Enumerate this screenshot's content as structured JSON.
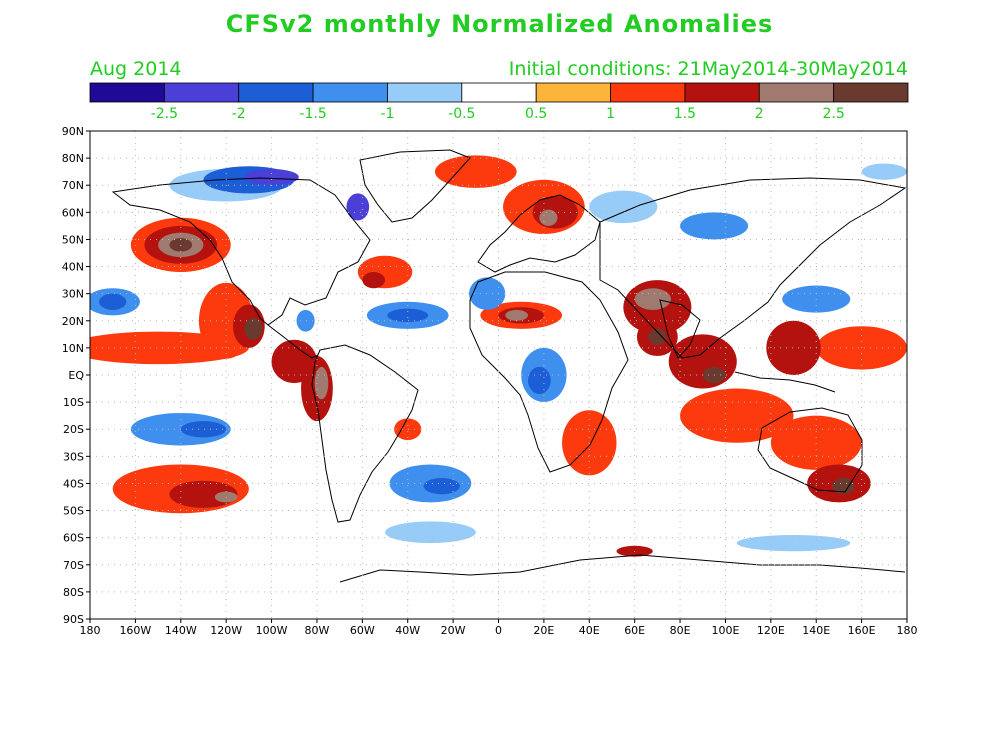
{
  "title": "CFSv2 monthly Normalized Anomalies",
  "month": "Aug 2014",
  "init": "Initial conditions: 21May2014-30May2014",
  "colorbar": {
    "colors": [
      "#1f0a96",
      "#4a3fd6",
      "#1c5ed6",
      "#3f8fee",
      "#98ccf8",
      "#ffffff",
      "#fdb43a",
      "#fc3a0e",
      "#b4120e",
      "#a07a6e",
      "#6a3a2e"
    ],
    "ticks": [
      "-2.5",
      "-2",
      "-1.5",
      "-1",
      "-0.5",
      "0.5",
      "1",
      "1.5",
      "2",
      "2.5"
    ]
  },
  "axes": {
    "lat_labels": [
      "90N",
      "80N",
      "70N",
      "60N",
      "50N",
      "40N",
      "30N",
      "20N",
      "10N",
      "EQ",
      "10S",
      "20S",
      "30S",
      "40S",
      "50S",
      "60S",
      "70S",
      "80S",
      "90S"
    ],
    "lon_labels": [
      "180",
      "160W",
      "140W",
      "120W",
      "100W",
      "80W",
      "60W",
      "40W",
      "20W",
      "0",
      "20E",
      "40E",
      "60E",
      "80E",
      "100E",
      "120E",
      "140E",
      "160E",
      "180"
    ]
  },
  "map_data": {
    "type": "filled-contour-map",
    "grid": true,
    "lon_range": [
      -180,
      180
    ],
    "lat_range": [
      -90,
      90
    ],
    "anomaly_regions": [
      {
        "lon": -140,
        "lat": 48,
        "rx": 22,
        "ry": 10,
        "level": 1
      },
      {
        "lon": -140,
        "lat": 48,
        "rx": 16,
        "ry": 7,
        "level": 1.5
      },
      {
        "lon": -140,
        "lat": 48,
        "rx": 10,
        "ry": 4.5,
        "level": 2
      },
      {
        "lon": -140,
        "lat": 48,
        "rx": 5,
        "ry": 2.5,
        "level": 2.5
      },
      {
        "lon": -170,
        "lat": 27,
        "rx": 12,
        "ry": 5,
        "level": -1
      },
      {
        "lon": -170,
        "lat": 27,
        "rx": 6,
        "ry": 3,
        "level": -1.5
      },
      {
        "lon": -150,
        "lat": 10,
        "rx": 40,
        "ry": 6,
        "level": 1
      },
      {
        "lon": -120,
        "lat": 20,
        "rx": 12,
        "ry": 14,
        "level": 1
      },
      {
        "lon": -110,
        "lat": 18,
        "rx": 7,
        "ry": 8,
        "level": 1.5
      },
      {
        "lon": -108,
        "lat": 17,
        "rx": 4,
        "ry": 4,
        "level": 2.5
      },
      {
        "lon": -90,
        "lat": 5,
        "rx": 10,
        "ry": 8,
        "level": 1.5
      },
      {
        "lon": -80,
        "lat": -5,
        "rx": 7,
        "ry": 12,
        "level": 1.5
      },
      {
        "lon": -78,
        "lat": -3,
        "rx": 3,
        "ry": 6,
        "level": 2
      },
      {
        "lon": -120,
        "lat": 70,
        "rx": 25,
        "ry": 6,
        "level": -0.5
      },
      {
        "lon": -110,
        "lat": 72,
        "rx": 20,
        "ry": 5,
        "level": -1.5
      },
      {
        "lon": -100,
        "lat": 73,
        "rx": 12,
        "ry": 3,
        "level": -2
      },
      {
        "lon": -62,
        "lat": 62,
        "rx": 5,
        "ry": 5,
        "level": -2
      },
      {
        "lon": -40,
        "lat": 22,
        "rx": 18,
        "ry": 5,
        "level": -1
      },
      {
        "lon": -40,
        "lat": 22,
        "rx": 9,
        "ry": 2.5,
        "level": -1.5
      },
      {
        "lon": -50,
        "lat": 38,
        "rx": 12,
        "ry": 6,
        "level": 1
      },
      {
        "lon": -55,
        "lat": 35,
        "rx": 5,
        "ry": 3,
        "level": 1.5
      },
      {
        "lon": -85,
        "lat": 20,
        "rx": 4,
        "ry": 4,
        "level": -1
      },
      {
        "lon": -140,
        "lat": -20,
        "rx": 22,
        "ry": 6,
        "level": -1
      },
      {
        "lon": -130,
        "lat": -20,
        "rx": 10,
        "ry": 3,
        "level": -1.5
      },
      {
        "lon": -140,
        "lat": -42,
        "rx": 30,
        "ry": 9,
        "level": 1
      },
      {
        "lon": -130,
        "lat": -44,
        "rx": 15,
        "ry": 5,
        "level": 1.5
      },
      {
        "lon": -120,
        "lat": -45,
        "rx": 5,
        "ry": 2,
        "level": 2
      },
      {
        "lon": -30,
        "lat": -40,
        "rx": 18,
        "ry": 7,
        "level": -1
      },
      {
        "lon": -25,
        "lat": -41,
        "rx": 8,
        "ry": 3,
        "level": -1.5
      },
      {
        "lon": -30,
        "lat": -58,
        "rx": 20,
        "ry": 4,
        "level": -0.5
      },
      {
        "lon": -40,
        "lat": -20,
        "rx": 6,
        "ry": 4,
        "level": 1
      },
      {
        "lon": -10,
        "lat": 75,
        "rx": 18,
        "ry": 6,
        "level": 1
      },
      {
        "lon": 20,
        "lat": 62,
        "rx": 18,
        "ry": 10,
        "level": 1
      },
      {
        "lon": 25,
        "lat": 60,
        "rx": 10,
        "ry": 6,
        "level": 1.5
      },
      {
        "lon": 22,
        "lat": 58,
        "rx": 4,
        "ry": 3,
        "level": 2
      },
      {
        "lon": 10,
        "lat": 22,
        "rx": 18,
        "ry": 5,
        "level": 1
      },
      {
        "lon": 10,
        "lat": 22,
        "rx": 10,
        "ry": 3,
        "level": 1.5
      },
      {
        "lon": 8,
        "lat": 22,
        "rx": 5,
        "ry": 2,
        "level": 2
      },
      {
        "lon": -5,
        "lat": 30,
        "rx": 8,
        "ry": 6,
        "level": -1
      },
      {
        "lon": 20,
        "lat": 0,
        "rx": 10,
        "ry": 10,
        "level": -1
      },
      {
        "lon": 18,
        "lat": -2,
        "rx": 5,
        "ry": 5,
        "level": -1.5
      },
      {
        "lon": 40,
        "lat": -25,
        "rx": 12,
        "ry": 12,
        "level": 1
      },
      {
        "lon": 55,
        "lat": 62,
        "rx": 15,
        "ry": 6,
        "level": -0.5
      },
      {
        "lon": 95,
        "lat": 55,
        "rx": 15,
        "ry": 5,
        "level": -1
      },
      {
        "lon": 70,
        "lat": 25,
        "rx": 15,
        "ry": 10,
        "level": 1.5
      },
      {
        "lon": 68,
        "lat": 28,
        "rx": 8,
        "ry": 4,
        "level": 2
      },
      {
        "lon": 70,
        "lat": 14,
        "rx": 9,
        "ry": 7,
        "level": 1.5
      },
      {
        "lon": 70,
        "lat": 14,
        "rx": 4,
        "ry": 3,
        "level": 2.5
      },
      {
        "lon": 90,
        "lat": 5,
        "rx": 15,
        "ry": 10,
        "level": 1.5
      },
      {
        "lon": 95,
        "lat": 0,
        "rx": 5,
        "ry": 3,
        "level": 2.5
      },
      {
        "lon": 105,
        "lat": -15,
        "rx": 25,
        "ry": 10,
        "level": 1
      },
      {
        "lon": 140,
        "lat": 28,
        "rx": 15,
        "ry": 5,
        "level": -1
      },
      {
        "lon": 160,
        "lat": 10,
        "rx": 20,
        "ry": 8,
        "level": 1
      },
      {
        "lon": 130,
        "lat": 10,
        "rx": 12,
        "ry": 10,
        "level": 1.5
      },
      {
        "lon": 140,
        "lat": -25,
        "rx": 20,
        "ry": 10,
        "level": 1
      },
      {
        "lon": 150,
        "lat": -40,
        "rx": 14,
        "ry": 7,
        "level": 1.5
      },
      {
        "lon": 152,
        "lat": -41,
        "rx": 5,
        "ry": 3,
        "level": 2.5
      },
      {
        "lon": 60,
        "lat": -65,
        "rx": 8,
        "ry": 2,
        "level": 1.5
      },
      {
        "lon": 130,
        "lat": -62,
        "rx": 25,
        "ry": 3,
        "level": -0.5
      },
      {
        "lon": 170,
        "lat": 75,
        "rx": 10,
        "ry": 3,
        "level": -0.5
      }
    ]
  }
}
